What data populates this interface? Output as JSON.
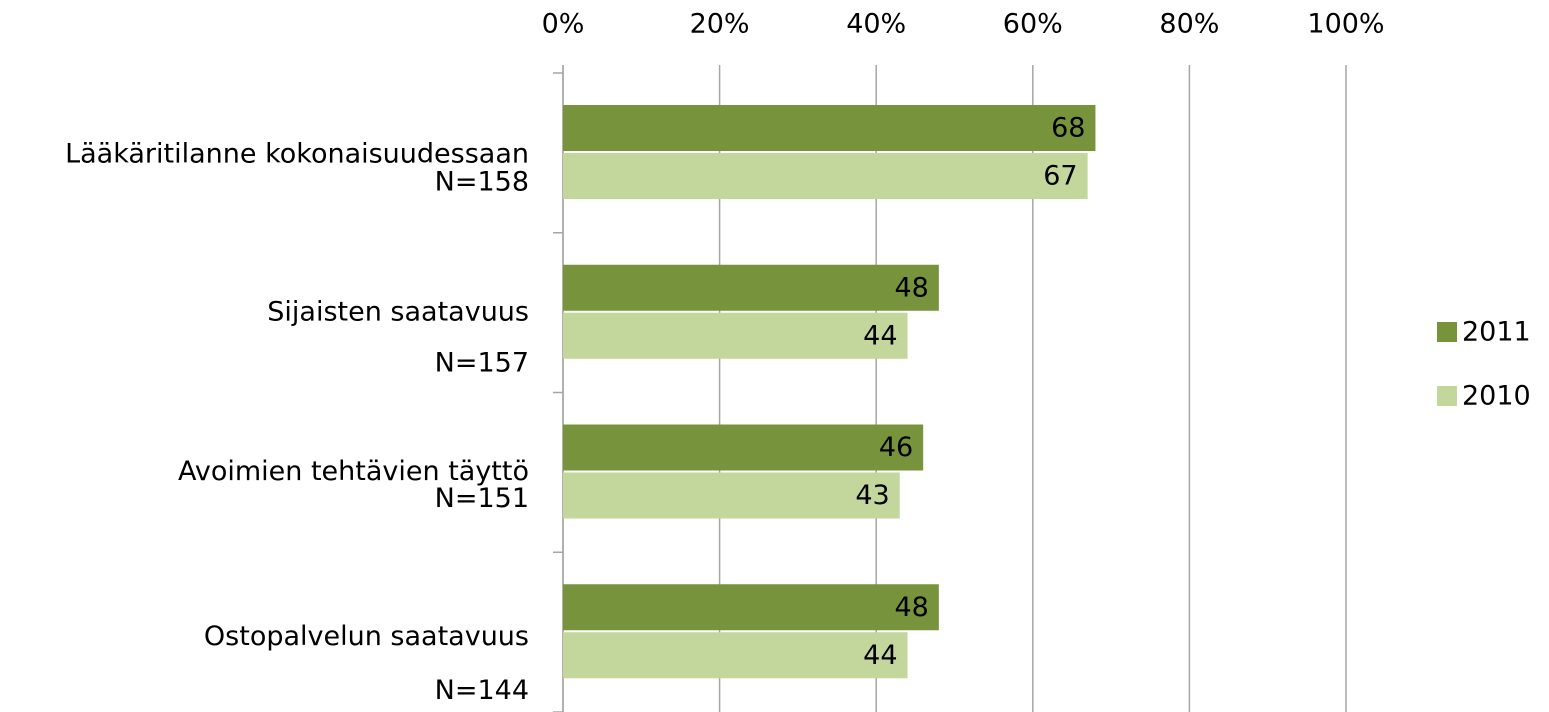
{
  "chart_data": {
    "type": "hbar",
    "categories": [
      "Lääkäritilanne kokonaisuudessaan",
      "Sijaisten saatavuus",
      "Avoimien tehtävien täyttö",
      "Ostopalvelun saatavuus"
    ],
    "category_notes": [
      "N=158",
      "N=157",
      "N=151",
      "N=144"
    ],
    "series": [
      {
        "name": "2011",
        "color": "#77933c",
        "values": [
          68,
          48,
          46,
          48
        ]
      },
      {
        "name": "2010",
        "color": "#c3d69b",
        "values": [
          67,
          44,
          43,
          44
        ]
      }
    ],
    "xlim": [
      0,
      100
    ],
    "xticks": [
      {
        "value": 0,
        "label": "0%"
      },
      {
        "value": 20,
        "label": "20%"
      },
      {
        "value": 40,
        "label": "40%"
      },
      {
        "value": 60,
        "label": "60%"
      },
      {
        "value": 80,
        "label": "80%"
      },
      {
        "value": 100,
        "label": "100%"
      }
    ],
    "grid": true,
    "legend": "right"
  }
}
